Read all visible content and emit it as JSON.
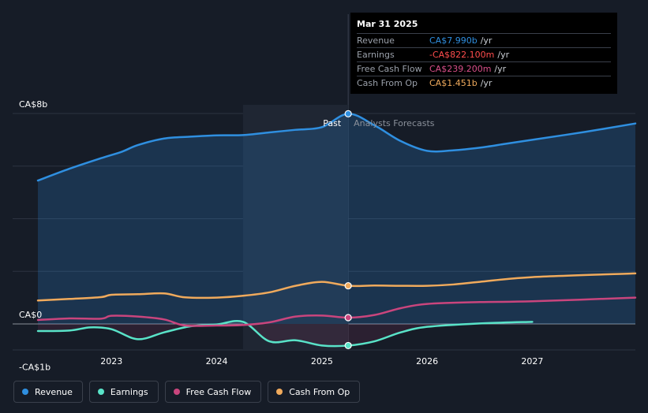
{
  "chart_data": {
    "type": "area",
    "currency_unit": "CA$",
    "y_axis": {
      "ticks": [
        {
          "value": 8000,
          "label": "CA$8b"
        },
        {
          "value": 0,
          "label": "CA$0"
        },
        {
          "value": -1000,
          "label": "-CA$1b"
        }
      ],
      "ylim": [
        -1000,
        8000
      ]
    },
    "x_axis": {
      "ticks": [
        2023,
        2024,
        2025,
        2026,
        2027
      ],
      "tick_labels": [
        "2023",
        "2024",
        "2025",
        "2026",
        "2027"
      ],
      "xlim": [
        2022.3,
        2027.98
      ]
    },
    "past_label": "Past",
    "forecast_label": "Analysts Forecasts",
    "past_end_x": 2025.25,
    "highlight_start_x": 2024.25,
    "series": [
      {
        "name": "Revenue",
        "color": "#2f8fe0",
        "fill": true,
        "points": [
          [
            2022.3,
            5450
          ],
          [
            2022.6,
            5900
          ],
          [
            2022.9,
            6300
          ],
          [
            2023.1,
            6550
          ],
          [
            2023.25,
            6800
          ],
          [
            2023.5,
            7050
          ],
          [
            2023.75,
            7120
          ],
          [
            2024.0,
            7170
          ],
          [
            2024.25,
            7180
          ],
          [
            2024.5,
            7280
          ],
          [
            2024.75,
            7380
          ],
          [
            2025.0,
            7480
          ],
          [
            2025.25,
            7990
          ],
          [
            2025.5,
            7550
          ],
          [
            2025.75,
            6950
          ],
          [
            2026.0,
            6580
          ],
          [
            2026.25,
            6600
          ],
          [
            2026.5,
            6700
          ],
          [
            2026.75,
            6850
          ],
          [
            2027.0,
            7000
          ],
          [
            2027.5,
            7300
          ],
          [
            2027.98,
            7620
          ]
        ]
      },
      {
        "name": "Earnings",
        "color": "#59e3c8",
        "fill": false,
        "points": [
          [
            2022.3,
            -270
          ],
          [
            2022.6,
            -250
          ],
          [
            2022.8,
            -130
          ],
          [
            2023.0,
            -200
          ],
          [
            2023.25,
            -580
          ],
          [
            2023.5,
            -320
          ],
          [
            2023.75,
            -90
          ],
          [
            2024.0,
            -20
          ],
          [
            2024.25,
            80
          ],
          [
            2024.5,
            -660
          ],
          [
            2024.75,
            -620
          ],
          [
            2025.0,
            -820
          ],
          [
            2025.25,
            -822
          ],
          [
            2025.5,
            -660
          ],
          [
            2025.75,
            -320
          ],
          [
            2026.0,
            -110
          ],
          [
            2026.5,
            20
          ],
          [
            2027.0,
            80
          ]
        ]
      },
      {
        "name": "Free Cash Flow",
        "color": "#c9457d",
        "fill": false,
        "points": [
          [
            2022.3,
            150
          ],
          [
            2022.6,
            210
          ],
          [
            2022.9,
            200
          ],
          [
            2023.0,
            310
          ],
          [
            2023.25,
            280
          ],
          [
            2023.5,
            170
          ],
          [
            2023.7,
            -60
          ],
          [
            2024.0,
            -60
          ],
          [
            2024.25,
            -40
          ],
          [
            2024.5,
            60
          ],
          [
            2024.75,
            280
          ],
          [
            2025.0,
            320
          ],
          [
            2025.25,
            239
          ],
          [
            2025.5,
            340
          ],
          [
            2025.75,
            600
          ],
          [
            2026.0,
            760
          ],
          [
            2026.5,
            830
          ],
          [
            2027.0,
            860
          ],
          [
            2027.98,
            1000
          ]
        ]
      },
      {
        "name": "Cash From Op",
        "color": "#f0aa5c",
        "fill": false,
        "points": [
          [
            2022.3,
            890
          ],
          [
            2022.6,
            950
          ],
          [
            2022.9,
            1020
          ],
          [
            2023.0,
            1110
          ],
          [
            2023.25,
            1130
          ],
          [
            2023.5,
            1160
          ],
          [
            2023.7,
            1010
          ],
          [
            2024.0,
            1000
          ],
          [
            2024.25,
            1070
          ],
          [
            2024.5,
            1200
          ],
          [
            2024.75,
            1450
          ],
          [
            2025.0,
            1600
          ],
          [
            2025.25,
            1451
          ],
          [
            2025.5,
            1460
          ],
          [
            2025.75,
            1450
          ],
          [
            2026.0,
            1450
          ],
          [
            2026.25,
            1500
          ],
          [
            2026.5,
            1600
          ],
          [
            2027.0,
            1780
          ],
          [
            2027.98,
            1920
          ]
        ]
      }
    ],
    "tooltip": {
      "date": "Mar 31 2025",
      "rows": [
        {
          "label": "Revenue",
          "value": "CA$7.990b",
          "unit": "/yr",
          "color": "#2f8fe0"
        },
        {
          "label": "Earnings",
          "value": "-CA$822.100m",
          "unit": "/yr",
          "color": "#ff4d4d"
        },
        {
          "label": "Free Cash Flow",
          "value": "CA$239.200m",
          "unit": "/yr",
          "color": "#d94f8a"
        },
        {
          "label": "Cash From Op",
          "value": "CA$1.451b",
          "unit": "/yr",
          "color": "#f0aa5c"
        }
      ]
    },
    "legend": [
      {
        "label": "Revenue",
        "color": "#2f8fe0"
      },
      {
        "label": "Earnings",
        "color": "#59e3c8"
      },
      {
        "label": "Free Cash Flow",
        "color": "#c9457d"
      },
      {
        "label": "Cash From Op",
        "color": "#f0aa5c"
      }
    ]
  }
}
